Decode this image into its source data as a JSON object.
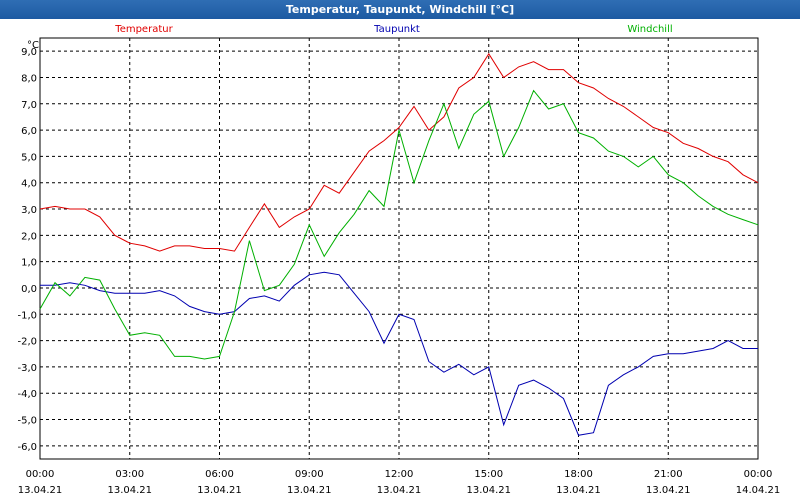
{
  "window": {
    "title": "Temperatur, Taupunkt, Windchill [°C]"
  },
  "colors": {
    "temperatur": "#e00000",
    "taupunkt": "#0000b0",
    "windchill": "#00b000",
    "grid": "#000000",
    "axis": "#000000"
  },
  "chart_data": {
    "type": "line",
    "title": "Temperatur, Taupunkt, Windchill [°C]",
    "ylabel": "°C",
    "ylim": [
      -6.5,
      9.5
    ],
    "yticks": [
      9.0,
      8.0,
      7.0,
      6.0,
      5.0,
      4.0,
      3.0,
      2.0,
      1.0,
      0.0,
      -1.0,
      -2.0,
      -3.0,
      -4.0,
      -5.0,
      -6.0
    ],
    "ytick_labels": [
      "9,0",
      "8,0",
      "7,0",
      "6,0",
      "5,0",
      "4,0",
      "3,0",
      "2,0",
      "1,0",
      "0,0",
      "-1,0",
      "-2,0",
      "-3,0",
      "-4,0",
      "-5,0",
      "-6,0"
    ],
    "xlim": [
      0,
      24
    ],
    "xticks": [
      0,
      3,
      6,
      9,
      12,
      15,
      18,
      21,
      24
    ],
    "xtick_times": [
      "00:00",
      "03:00",
      "06:00",
      "09:00",
      "12:00",
      "15:00",
      "18:00",
      "21:00",
      "00:00"
    ],
    "xtick_dates": [
      "13.04.21",
      "13.04.21",
      "13.04.21",
      "13.04.21",
      "13.04.21",
      "13.04.21",
      "13.04.21",
      "13.04.21",
      "14.04.21"
    ],
    "grid": true,
    "series": [
      {
        "name": "Temperatur",
        "color": "#e00000",
        "x": [
          0,
          0.5,
          1,
          1.5,
          2,
          2.5,
          3,
          3.5,
          4,
          4.5,
          5,
          5.5,
          6,
          6.5,
          7,
          7.5,
          8,
          8.5,
          9,
          9.5,
          10,
          10.5,
          11,
          11.5,
          12,
          12.5,
          13,
          13.5,
          14,
          14.5,
          15,
          15.5,
          16,
          16.5,
          17,
          17.5,
          18,
          18.5,
          19,
          19.5,
          20,
          20.5,
          21,
          21.5,
          22,
          22.5,
          23,
          23.5,
          24
        ],
        "values": [
          3.0,
          3.1,
          3.0,
          3.0,
          2.7,
          2.0,
          1.7,
          1.6,
          1.4,
          1.6,
          1.6,
          1.5,
          1.5,
          1.4,
          2.3,
          3.2,
          2.3,
          2.7,
          3.0,
          3.9,
          3.6,
          4.4,
          5.2,
          5.6,
          6.1,
          6.9,
          6.0,
          6.5,
          7.6,
          8.0,
          8.9,
          8.0,
          8.4,
          8.6,
          8.3,
          8.3,
          7.8,
          7.6,
          7.2,
          6.9,
          6.5,
          6.1,
          5.9,
          5.5,
          5.3,
          5.0,
          4.8,
          4.3,
          4.0
        ]
      },
      {
        "name": "Taupunkt",
        "color": "#0000b0",
        "x": [
          0,
          0.5,
          1,
          1.5,
          2,
          2.5,
          3,
          3.5,
          4,
          4.5,
          5,
          5.5,
          6,
          6.5,
          7,
          7.5,
          8,
          8.5,
          9,
          9.5,
          10,
          10.5,
          11,
          11.5,
          12,
          12.5,
          13,
          13.5,
          14,
          14.5,
          15,
          15.5,
          16,
          16.5,
          17,
          17.5,
          18,
          18.5,
          19,
          19.5,
          20,
          20.5,
          21,
          21.5,
          22,
          22.5,
          23,
          23.5,
          24
        ],
        "values": [
          0.1,
          0.1,
          0.2,
          0.1,
          -0.1,
          -0.2,
          -0.2,
          -0.2,
          -0.1,
          -0.3,
          -0.7,
          -0.9,
          -1.0,
          -0.9,
          -0.4,
          -0.3,
          -0.5,
          0.1,
          0.5,
          0.6,
          0.5,
          -0.2,
          -0.9,
          -2.1,
          -1.0,
          -1.2,
          -2.8,
          -3.2,
          -2.9,
          -3.3,
          -3.0,
          -5.2,
          -3.7,
          -3.5,
          -3.8,
          -4.2,
          -5.6,
          -5.5,
          -3.7,
          -3.3,
          -3.0,
          -2.6,
          -2.5,
          -2.5,
          -2.4,
          -2.3,
          -2.0,
          -2.3,
          -2.3
        ]
      },
      {
        "name": "Windchill",
        "color": "#00b000",
        "x": [
          0,
          0.5,
          1,
          1.5,
          2,
          2.5,
          3,
          3.5,
          4,
          4.5,
          5,
          5.5,
          6,
          6.5,
          7,
          7.5,
          8,
          8.5,
          9,
          9.5,
          10,
          10.5,
          11,
          11.5,
          12,
          12.5,
          13,
          13.5,
          14,
          14.5,
          15,
          15.5,
          16,
          16.5,
          17,
          17.5,
          18,
          18.5,
          19,
          19.5,
          20,
          20.5,
          21,
          21.5,
          22,
          22.5,
          23,
          23.5,
          24
        ],
        "values": [
          -0.8,
          0.2,
          -0.3,
          0.4,
          0.3,
          -0.8,
          -1.8,
          -1.7,
          -1.8,
          -2.6,
          -2.6,
          -2.7,
          -2.6,
          -0.9,
          1.8,
          -0.1,
          0.1,
          0.9,
          2.4,
          1.2,
          2.1,
          2.8,
          3.7,
          3.1,
          6.0,
          4.0,
          5.6,
          7.0,
          5.3,
          6.6,
          7.1,
          5.0,
          6.1,
          7.5,
          6.8,
          7.0,
          5.9,
          5.7,
          5.2,
          5.0,
          4.6,
          5.0,
          4.3,
          4.0,
          3.5,
          3.1,
          2.8,
          2.6,
          2.4
        ]
      }
    ]
  }
}
